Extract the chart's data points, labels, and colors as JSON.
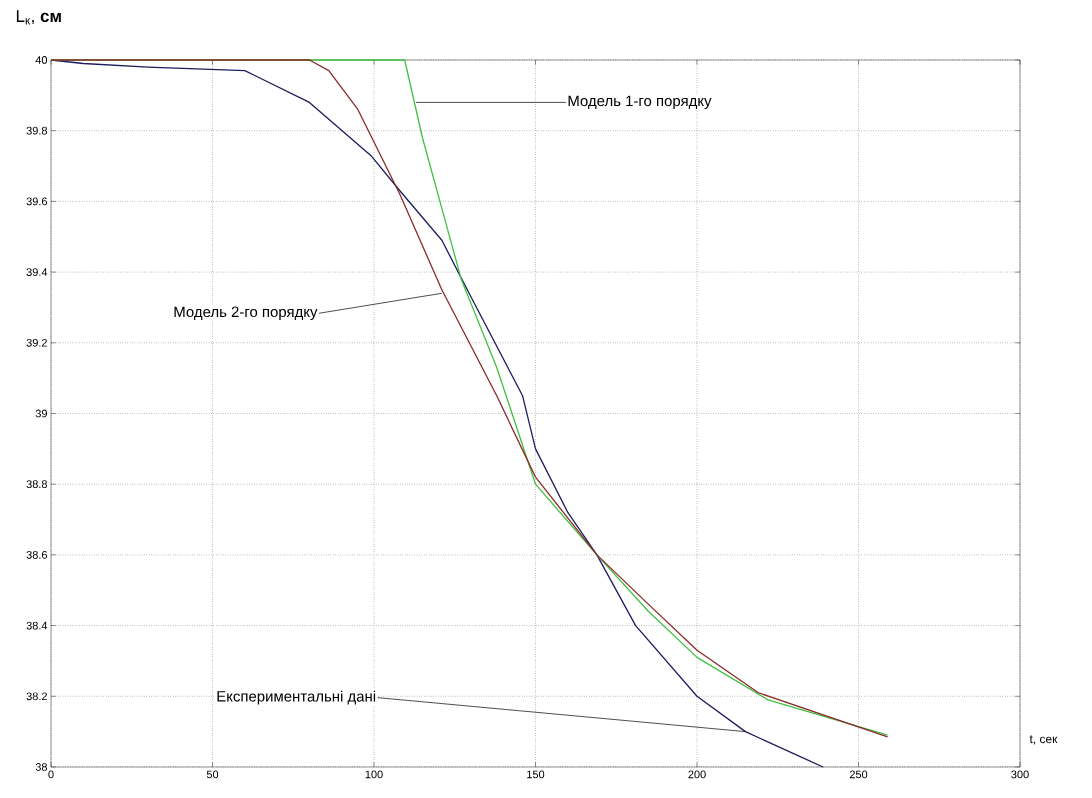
{
  "chart_data": {
    "type": "line",
    "xlabel": "t, сек",
    "ylabel": "L$_{к}$, **см**",
    "xlim": [
      0,
      300
    ],
    "ylim": [
      38,
      40
    ],
    "xticks": [
      0,
      50,
      100,
      150,
      200,
      250,
      300
    ],
    "yticks": [
      38,
      38.2,
      38.4,
      38.6,
      38.8,
      39,
      39.2,
      39.4,
      39.6,
      39.8,
      40
    ],
    "grid": true,
    "line_style": "solid",
    "marker": "none",
    "series": [
      {
        "color": "#1c1c5e",
        "x": [
          0,
          10,
          30,
          60,
          80,
          99,
          108,
          121,
          130,
          146,
          150,
          160,
          169,
          181,
          200,
          215,
          239
        ],
        "values": [
          40,
          39.99,
          39.98,
          39.97,
          39.88,
          39.73,
          39.63,
          39.49,
          39.33,
          39.05,
          38.9,
          38.72,
          38.6,
          38.4,
          38.2,
          38.1,
          38.0
        ]
      },
      {
        "color": "#40c040",
        "x": [
          0,
          109.5,
          115,
          121,
          127,
          138,
          150,
          169,
          185,
          200,
          222,
          259
        ],
        "values": [
          40,
          40,
          39.78,
          39.58,
          39.38,
          39.13,
          38.8,
          38.6,
          38.44,
          38.31,
          38.19,
          38.09
        ]
      },
      {
        "color": "#8b2a2a",
        "x": [
          0,
          80,
          86,
          95,
          108,
          121,
          138,
          150,
          169,
          185,
          200,
          219,
          259
        ],
        "values": [
          40,
          40,
          39.97,
          39.86,
          39.62,
          39.35,
          39.05,
          38.82,
          38.6,
          38.46,
          38.33,
          38.21,
          38.085
        ]
      }
    ],
    "annotations": [
      {
        "text": "Модель 1-го порядку",
        "x": 113,
        "y": 39.88
      },
      {
        "text": "Модель 2-го порядку",
        "x": 121,
        "y": 39.34
      },
      {
        "text": "Експериментальні дані",
        "x": 215,
        "y": 38.1
      }
    ]
  }
}
